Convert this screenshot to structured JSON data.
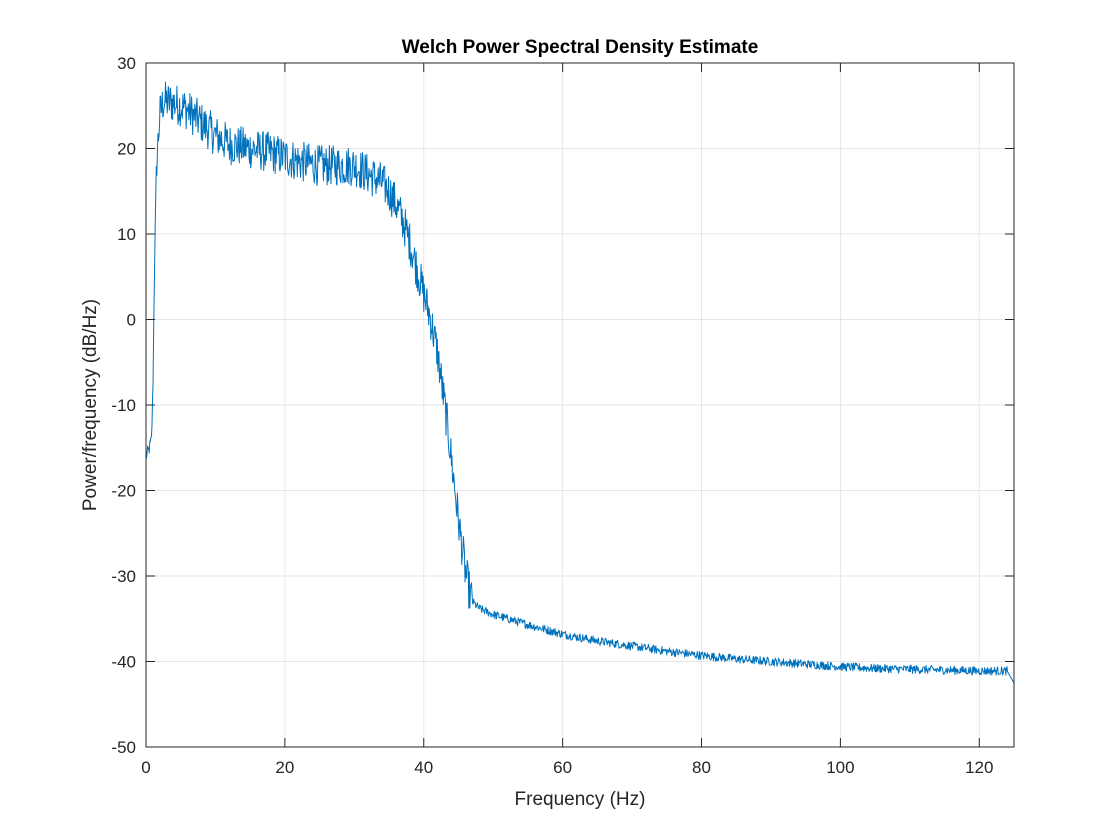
{
  "chart_data": {
    "type": "line",
    "title": "Welch Power Spectral Density Estimate",
    "xlabel": "Frequency (Hz)",
    "ylabel": "Power/frequency (dB/Hz)",
    "xlim": [
      0,
      125
    ],
    "ylim": [
      -50,
      30
    ],
    "xticks": [
      0,
      20,
      40,
      60,
      80,
      100,
      120
    ],
    "yticks": [
      -50,
      -40,
      -30,
      -20,
      -10,
      0,
      10,
      20,
      30
    ],
    "grid": true,
    "line_color": "#0072BD",
    "series": [
      {
        "x": [
          0,
          0.3,
          0.5,
          0.8,
          1.0,
          1.2,
          1.5,
          2.0,
          2.5,
          3.0,
          4.0,
          5.0,
          6.0,
          8.0,
          10.0,
          12.0,
          15.0,
          18.0,
          20.0,
          22.0,
          25.0,
          28.0,
          30.0,
          32.0,
          34.0,
          35.0,
          36.0,
          37.0,
          38.0,
          39.0,
          40.0,
          41.0,
          42.0,
          42.5,
          43.0,
          43.5,
          44.0,
          44.5,
          45.0,
          45.5,
          46.0,
          46.5,
          47.0,
          48.0,
          50.0,
          55.0,
          60.0,
          65.0,
          70.0,
          75.0,
          80.0,
          85.0,
          90.0,
          95.0,
          100.0,
          105.0,
          110.0,
          115.0,
          120.0,
          124.0,
          125.0
        ],
        "y": [
          -16,
          -15.5,
          -15,
          -14,
          -8,
          5,
          18,
          24,
          25.5,
          25.5,
          25.3,
          25,
          24.5,
          23,
          21.5,
          20.5,
          20,
          19.5,
          19,
          18.5,
          18,
          18,
          18,
          17,
          16,
          15,
          13.5,
          11.5,
          9,
          6,
          3,
          0,
          -4,
          -7,
          -10,
          -13,
          -16.5,
          -20,
          -23.5,
          -26.5,
          -29.5,
          -31.5,
          -33,
          -33.8,
          -34.5,
          -35.7,
          -36.8,
          -37.6,
          -38.2,
          -38.8,
          -39.3,
          -39.7,
          -40.0,
          -40.3,
          -40.6,
          -40.8,
          -40.9,
          -41.0,
          -41.1,
          -41.1,
          -42.5
        ]
      }
    ]
  }
}
